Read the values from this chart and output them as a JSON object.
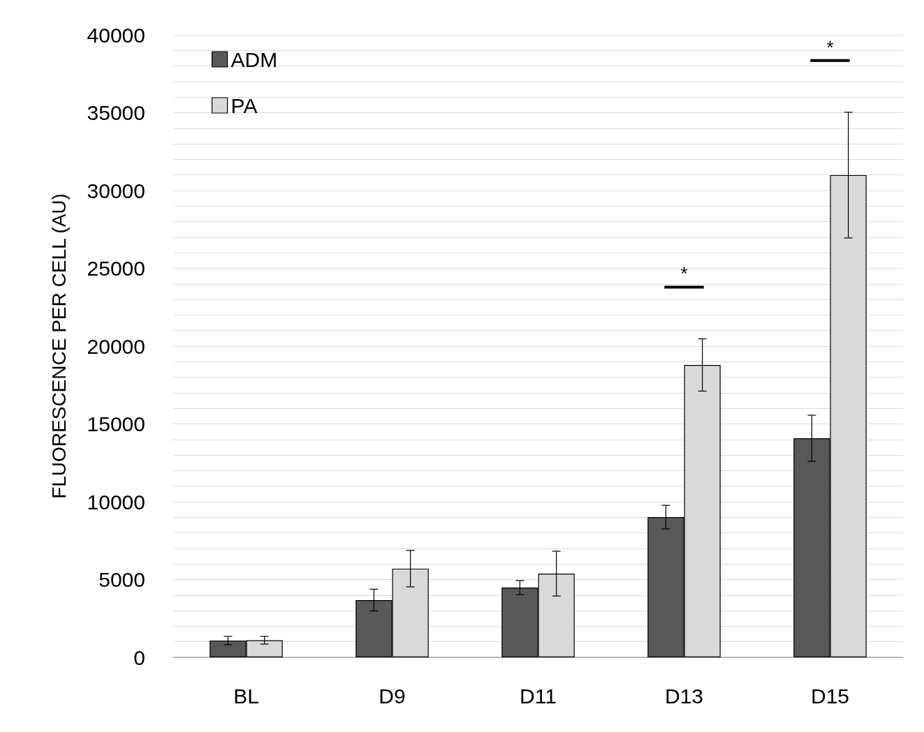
{
  "chart_data": {
    "type": "bar",
    "ylabel": "FLUORESCENCE PER CELL (AU)",
    "categories": [
      "BL",
      "D9",
      "D11",
      "D13",
      "D15"
    ],
    "series": [
      {
        "name": "ADM",
        "color": "#595959",
        "values": [
          1080,
          3680,
          4480,
          9010,
          14080
        ],
        "errors": [
          270,
          700,
          450,
          760,
          1480
        ]
      },
      {
        "name": "PA",
        "color": "#d9d9d9",
        "values": [
          1100,
          5700,
          5380,
          18790,
          30990
        ],
        "errors": [
          250,
          1170,
          1440,
          1680,
          4040
        ]
      }
    ],
    "ylim": [
      0,
      40000
    ],
    "yticks": [
      0,
      {
        "value": 1000,
        "label": null
      },
      {
        "value": 2000,
        "label": null
      },
      {
        "value": 3000,
        "label": null
      },
      {
        "value": 4000,
        "label": null
      },
      5000,
      {
        "value": 6000,
        "label": null
      },
      {
        "value": 7000,
        "label": null
      },
      {
        "value": 8000,
        "label": null
      },
      {
        "value": 9000,
        "label": null
      },
      10000,
      {
        "value": 11000,
        "label": null
      },
      {
        "value": 12000,
        "label": null
      },
      {
        "value": 13000,
        "label": null
      },
      {
        "value": 14000,
        "label": null
      },
      15000,
      {
        "value": 16000,
        "label": null
      },
      {
        "value": 17000,
        "label": null
      },
      {
        "value": 18000,
        "label": null
      },
      {
        "value": 19000,
        "label": null
      },
      20000,
      {
        "value": 21000,
        "label": null
      },
      {
        "value": 22000,
        "label": null
      },
      {
        "value": 23000,
        "label": null
      },
      {
        "value": 24000,
        "label": null
      },
      25000,
      {
        "value": 26000,
        "label": null
      },
      {
        "value": 27000,
        "label": null
      },
      {
        "value": 28000,
        "label": null
      },
      {
        "value": 29000,
        "label": null
      },
      30000,
      {
        "value": 31000,
        "label": null
      },
      {
        "value": 32000,
        "label": null
      },
      {
        "value": 33000,
        "label": null
      },
      {
        "value": 34000,
        "label": null
      },
      35000,
      {
        "value": 36000,
        "label": null
      },
      {
        "value": 37000,
        "label": null
      },
      {
        "value": 38000,
        "label": null
      },
      {
        "value": 39000,
        "label": null
      },
      40000
    ],
    "annotations": [
      "*",
      "*"
    ],
    "grid": "y",
    "legend": "top left"
  }
}
